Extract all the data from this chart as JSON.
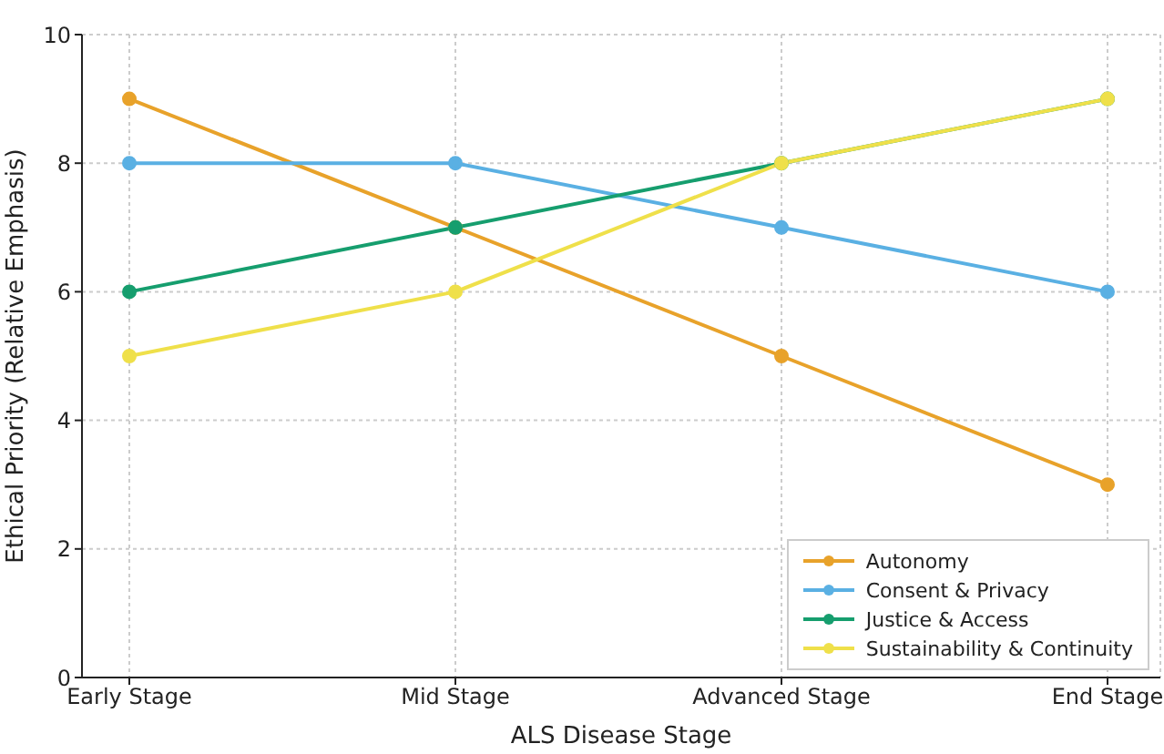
{
  "chart_data": {
    "type": "line",
    "xlabel": "ALS Disease Stage",
    "ylabel": "Ethical Priority (Relative Emphasis)",
    "categories": [
      "Early Stage",
      "Mid Stage",
      "Advanced Stage",
      "End Stage"
    ],
    "series": [
      {
        "name": "Autonomy",
        "color": "#e8a22a",
        "values": [
          9,
          7,
          5,
          3
        ]
      },
      {
        "name": "Consent & Privacy",
        "color": "#5ab0e3",
        "values": [
          8,
          8,
          7,
          6
        ]
      },
      {
        "name": "Justice & Access",
        "color": "#169e6e",
        "values": [
          6,
          7,
          8,
          9
        ]
      },
      {
        "name": "Sustainability & Continuity",
        "color": "#efe04a",
        "values": [
          5,
          6,
          8,
          9
        ]
      }
    ],
    "ylim": [
      0,
      10
    ],
    "yticks": [
      0,
      2,
      4,
      6,
      8,
      10
    ],
    "grid": true,
    "legend": "bottom right",
    "marker": "circle",
    "line_style": "solid"
  }
}
